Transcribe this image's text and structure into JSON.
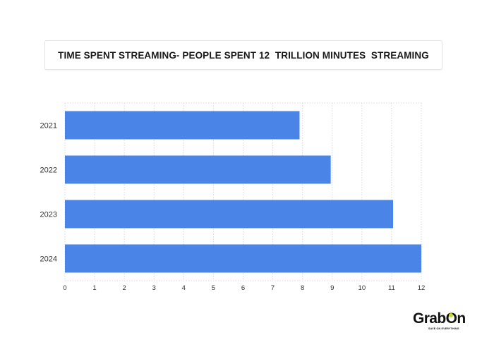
{
  "chart_data": {
    "type": "bar",
    "orientation": "horizontal",
    "title": "TIME SPENT STREAMING- PEOPLE SPENT 12  TRILLION MINUTES  STREAMING",
    "categories": [
      "2021",
      "2022",
      "2023",
      "2024"
    ],
    "values": [
      7.9,
      8.95,
      11.05,
      12
    ],
    "xlim": [
      0,
      12
    ],
    "x_ticks": [
      "0",
      "1",
      "2",
      "3",
      "4",
      "5",
      "6",
      "7",
      "8",
      "9",
      "10",
      "11",
      "12"
    ],
    "xlabel": "",
    "ylabel": "",
    "grid": true,
    "bar_color": "#4a84e6",
    "grid_color": "#d9d9d9"
  },
  "branding": {
    "logo_text": "GrabOn",
    "logo_tagline": "SAVE ON EVERYTHING",
    "logo_accent": "#c8d62a"
  }
}
